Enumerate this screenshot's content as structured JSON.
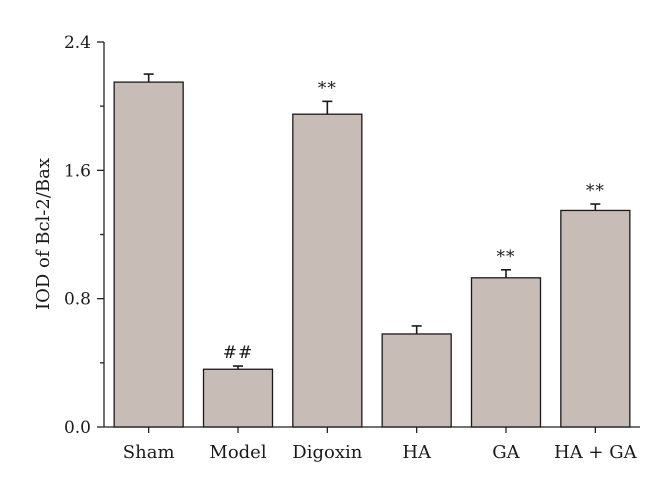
{
  "chart_data": {
    "type": "bar",
    "ylabel": "IOD of Bcl-2/Bax",
    "xlabel": "",
    "categories": [
      "Sham",
      "Model",
      "Digoxin",
      "HA",
      "GA",
      "HA + GA"
    ],
    "values": [
      2.15,
      0.36,
      1.95,
      0.58,
      0.93,
      1.35
    ],
    "errors": [
      0.05,
      0.02,
      0.08,
      0.05,
      0.05,
      0.04
    ],
    "annotations": [
      "",
      "##",
      "**",
      "",
      "**",
      "**"
    ],
    "ylim": [
      0.0,
      2.4
    ],
    "yticks": [
      "0.0",
      "0.8",
      "1.6",
      "2.4"
    ],
    "grid": false,
    "bar_color": "#c7bcb6",
    "edge_color": "#1a1a1a"
  }
}
